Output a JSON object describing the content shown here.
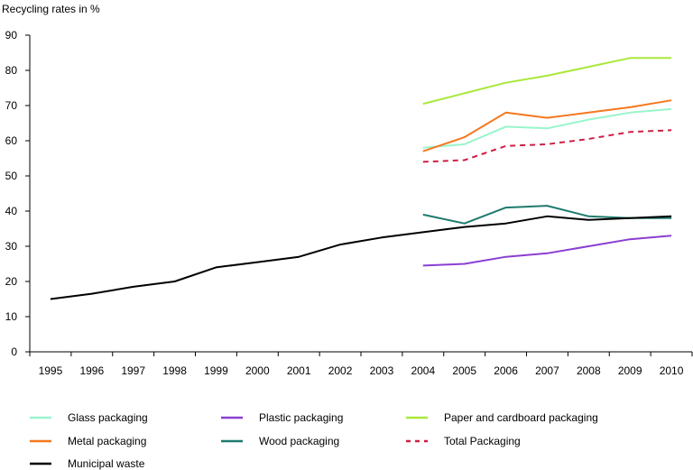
{
  "chart_data": {
    "type": "line",
    "title": "",
    "ylabel": "Recycling rates in %",
    "xlabel": "",
    "ylim": [
      0,
      90
    ],
    "yticks": [
      "0",
      "10",
      "20",
      "30",
      "40",
      "50",
      "60",
      "70",
      "80",
      "90"
    ],
    "x": [
      "1995",
      "1996",
      "1997",
      "1998",
      "1999",
      "2000",
      "2001",
      "2002",
      "2003",
      "2004",
      "2005",
      "2006",
      "2007",
      "2008",
      "2009",
      "2010"
    ],
    "grid": false,
    "legend_position": "bottom",
    "series": [
      {
        "name": "Glass packaging",
        "color": "#99f5cc",
        "dashed": false,
        "values": [
          null,
          null,
          null,
          null,
          null,
          null,
          null,
          null,
          null,
          58,
          59,
          64,
          63.5,
          66,
          68,
          69
        ]
      },
      {
        "name": "Plastic packaging",
        "color": "#8a3fd1",
        "dashed": false,
        "values": [
          null,
          null,
          null,
          null,
          null,
          null,
          null,
          null,
          null,
          24.5,
          25,
          27,
          28,
          30,
          32,
          33
        ]
      },
      {
        "name": "Paper and cardboard packaging",
        "color": "#a9e83b",
        "dashed": false,
        "values": [
          null,
          null,
          null,
          null,
          null,
          null,
          null,
          null,
          null,
          70.5,
          73.5,
          76.5,
          78.5,
          81,
          83.5,
          83.5
        ]
      },
      {
        "name": "Metal packaging",
        "color": "#f5781f",
        "dashed": false,
        "values": [
          null,
          null,
          null,
          null,
          null,
          null,
          null,
          null,
          null,
          57,
          61,
          68,
          66.5,
          68,
          69.5,
          71.5
        ]
      },
      {
        "name": "Wood packaging",
        "color": "#1f7a6e",
        "dashed": false,
        "values": [
          null,
          null,
          null,
          null,
          null,
          null,
          null,
          null,
          null,
          39,
          36.5,
          41,
          41.5,
          38.5,
          38,
          38
        ]
      },
      {
        "name": "Total Packaging",
        "color": "#cf1f45",
        "dashed": true,
        "values": [
          null,
          null,
          null,
          null,
          null,
          null,
          null,
          null,
          null,
          54,
          54.5,
          58.5,
          59,
          60.5,
          62.5,
          63
        ]
      },
      {
        "name": "Municipal waste",
        "color": "#000000",
        "dashed": false,
        "values": [
          15,
          16.5,
          18.5,
          20,
          24,
          25.5,
          27,
          30.5,
          32.5,
          34,
          35.5,
          36.5,
          38.5,
          37.5,
          38,
          38.5
        ]
      }
    ]
  }
}
